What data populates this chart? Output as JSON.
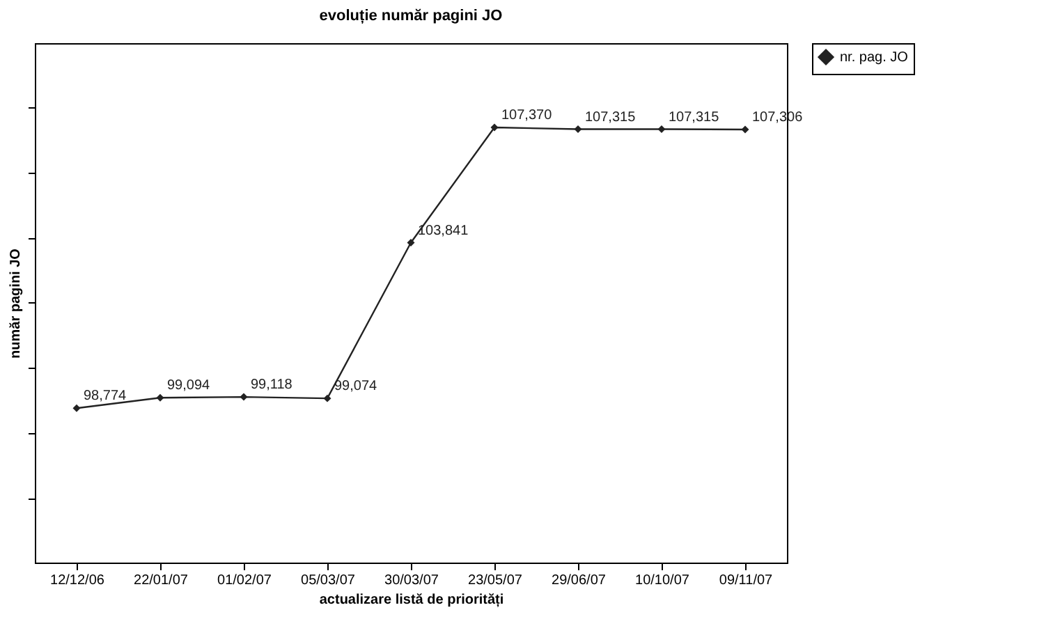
{
  "chart_data": {
    "type": "line",
    "title": "evoluție număr pagini JO",
    "xlabel": "actualizare listă de priorități",
    "ylabel": "număr pagini JO",
    "categories": [
      "12/12/06",
      "22/01/07",
      "01/02/07",
      "05/03/07",
      "30/03/07",
      "23/05/07",
      "29/06/07",
      "10/10/07",
      "09/11/07"
    ],
    "series": [
      {
        "name": "nr. pag. JO",
        "color": "#222222",
        "values": [
          98774,
          99094,
          99118,
          99074,
          103841,
          107370,
          107315,
          107315,
          107306
        ],
        "value_labels": [
          "98,774",
          "99,094",
          "99,118",
          "99,074",
          "103,841",
          "107,370",
          "107,315",
          "107,315",
          "107,306"
        ]
      }
    ],
    "tick_labels": "x",
    "grid": false,
    "legend": "right",
    "marker": "diamond",
    "line_style": "solid"
  }
}
